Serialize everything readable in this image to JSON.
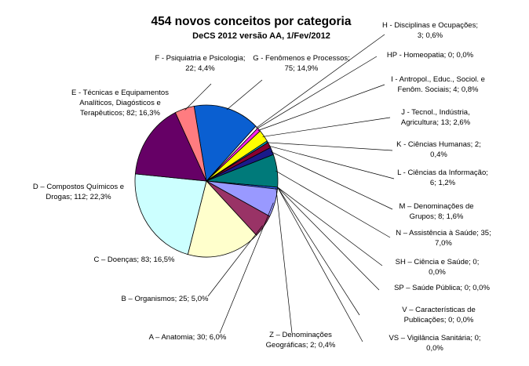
{
  "chart_data": {
    "type": "pie",
    "title": "454 novos conceitos por categoria",
    "subtitle": "DeCS 2012 versão AA, 1/Fev/2012",
    "slices": [
      {
        "key": "G",
        "lines": [
          "G - Fenômenos e Processos;",
          "75; 14,9%"
        ],
        "value": 75,
        "color": "#0a5fd1"
      },
      {
        "key": "H",
        "lines": [
          "H - Disciplinas e Ocupações;",
          "3; 0,6%"
        ],
        "value": 3,
        "color": "#ffffff"
      },
      {
        "key": "HP",
        "lines": [
          "HP - Homeopatia; 0; 0,0%"
        ],
        "value": 0,
        "color": "#00ffff"
      },
      {
        "key": "I",
        "lines": [
          "I - Antropol., Educ., Sociol. e",
          "Fenôm. Sociais; 4; 0,8%"
        ],
        "value": 4,
        "color": "#ff22ee"
      },
      {
        "key": "J",
        "lines": [
          "J - Tecnol., Indústria,",
          "Agricultura; 13; 2,6%"
        ],
        "value": 13,
        "color": "#ffff00"
      },
      {
        "key": "K",
        "lines": [
          "K - Ciências Humanas; 2;",
          "0,4%"
        ],
        "value": 2,
        "color": "#00a8c8"
      },
      {
        "key": "L",
        "lines": [
          "L - Ciências da Informação;",
          "6; 1,2%"
        ],
        "value": 6,
        "color": "#8a0030"
      },
      {
        "key": "M",
        "lines": [
          "M – Denominações de",
          "Grupos; 8; 1,6%"
        ],
        "value": 8,
        "color": "#1a1a8a"
      },
      {
        "key": "N",
        "lines": [
          "N – Assistência à Saúde; 35;",
          "7,0%"
        ],
        "value": 35,
        "color": "#007a7a"
      },
      {
        "key": "SH",
        "lines": [
          "SH – Ciência e Saúde; 0;",
          "0,0%"
        ],
        "value": 0,
        "color": "#333333"
      },
      {
        "key": "SP",
        "lines": [
          "SP – Saúde Pública; 0; 0,0%"
        ],
        "value": 0,
        "color": "#555555"
      },
      {
        "key": "V",
        "lines": [
          "V – Características de",
          "Publicações; 0; 0,0%"
        ],
        "value": 0,
        "color": "#777777"
      },
      {
        "key": "VS",
        "lines": [
          "VS – Vigilância Sanitária; 0;",
          "0,0%"
        ],
        "value": 0,
        "color": "#999999"
      },
      {
        "key": "Z",
        "lines": [
          "Z – Denominações",
          "Geográficas; 2; 0,4%"
        ],
        "value": 2,
        "color": "#3366ff"
      },
      {
        "key": "A",
        "lines": [
          "A – Anatomia; 30; 6,0%"
        ],
        "value": 30,
        "color": "#9999ff"
      },
      {
        "key": "B",
        "lines": [
          "B – Organismos; 25; 5,0%"
        ],
        "value": 25,
        "color": "#993366"
      },
      {
        "key": "C",
        "lines": [
          "C – Doenças; 83; 16,5%"
        ],
        "value": 83,
        "color": "#ffffcc"
      },
      {
        "key": "D",
        "lines": [
          "D – Compostos Químicos e",
          "Drogas; 112; 22,3%"
        ],
        "value": 112,
        "color": "#ccffff"
      },
      {
        "key": "E",
        "lines": [
          "E - Técnicas e Equipamentos",
          "Analíticos, Diagósticos e",
          "Terapêuticos; 82; 16,3%"
        ],
        "value": 82,
        "color": "#660066"
      },
      {
        "key": "F",
        "lines": [
          "F - Psiquiatria e Psicologia;",
          "22; 4,4%"
        ],
        "value": 22,
        "color": "#ff7c80"
      }
    ],
    "legend": "none"
  }
}
